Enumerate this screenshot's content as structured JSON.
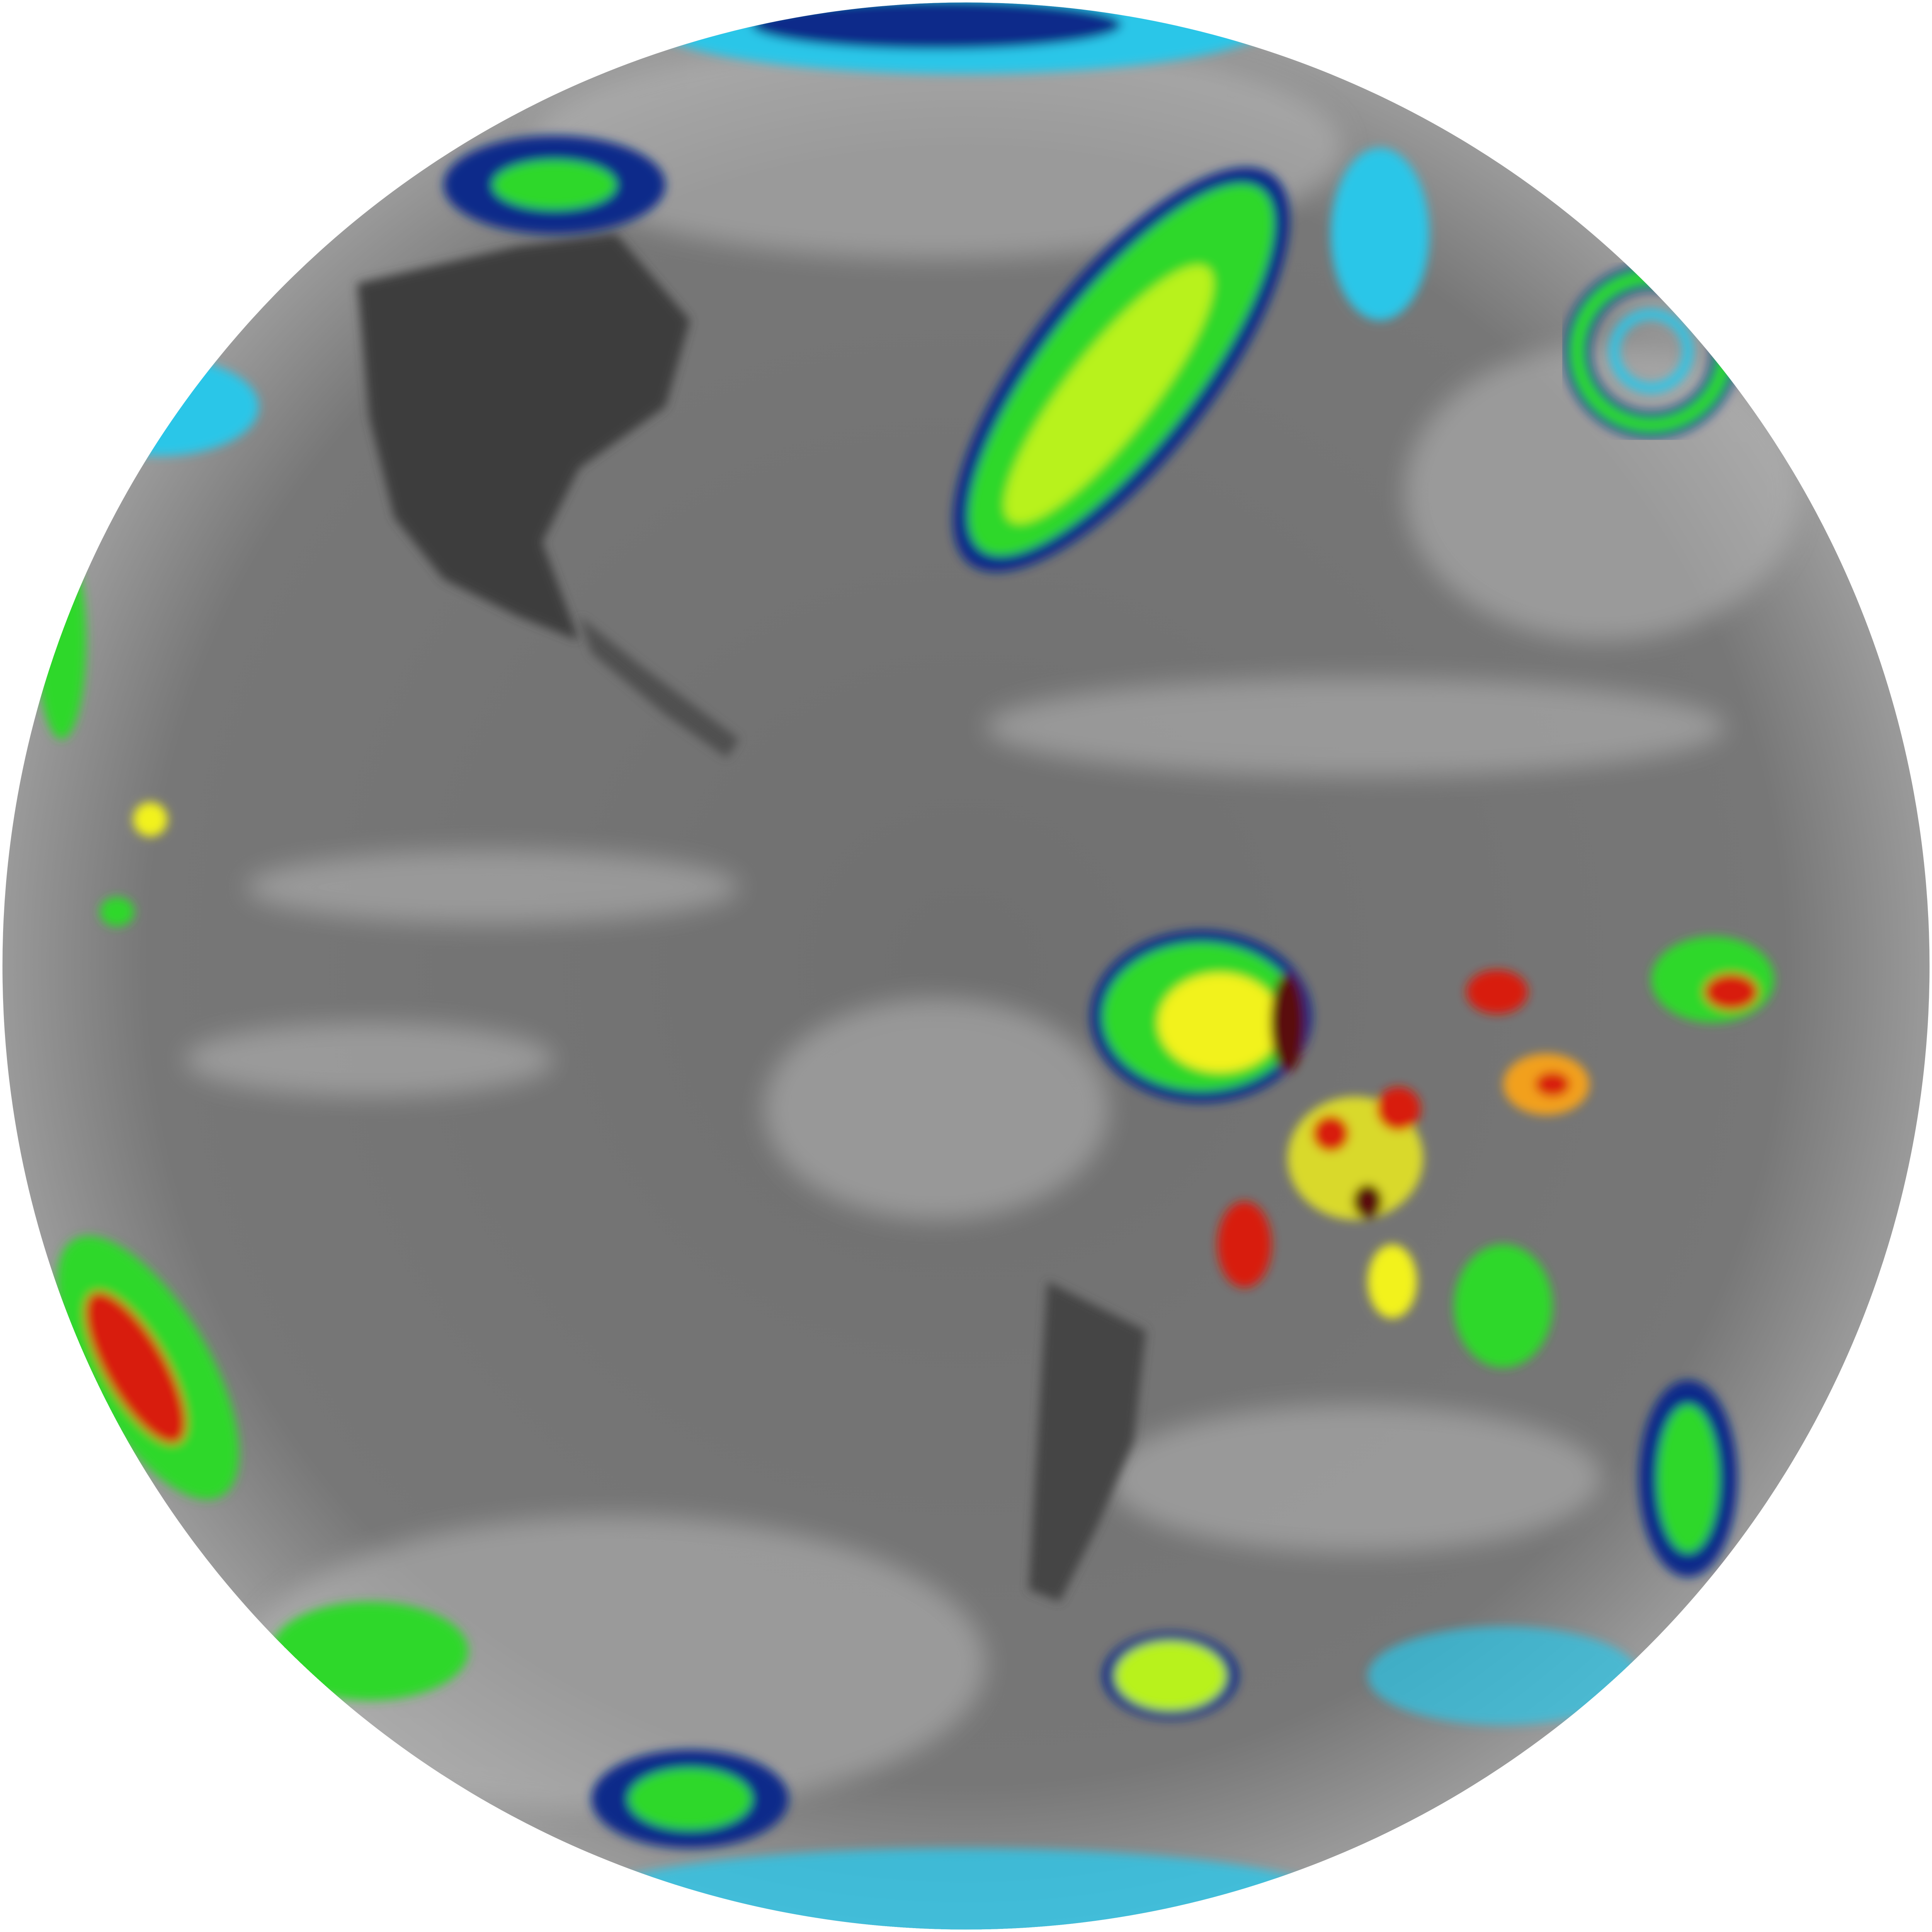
{
  "image": {
    "subject": "full-disk-infrared-satellite-view",
    "colors": {
      "background": "#ffffff",
      "ocean_gray": "#6e6e6e",
      "land_dark": "#3a3a3a",
      "cloud_light": "#c8c8c8",
      "cold_cyan": "#29c6e8",
      "cold_blue": "#0a2a8a",
      "cold_green": "#2ed82a",
      "cold_yellow": "#f2f21a",
      "cold_red": "#d81a10",
      "cold_darkred": "#5a0a0a"
    }
  }
}
